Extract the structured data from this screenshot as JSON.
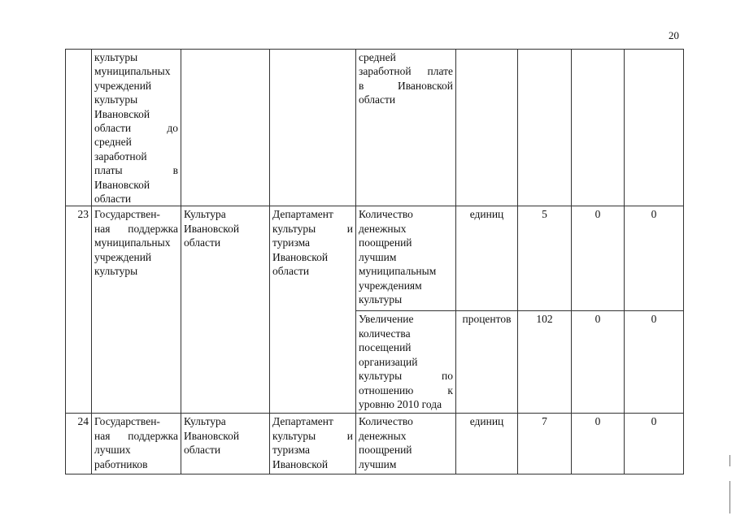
{
  "page_number": "20",
  "rows": [
    {
      "num": "",
      "event": [
        "культуры",
        "муниципальных",
        "учреждений",
        "культуры",
        "Ивановской",
        "области до",
        "средней",
        "заработной",
        "платы в",
        "Ивановской",
        "области"
      ],
      "program": [],
      "executor": [],
      "indicators": [
        {
          "name": [
            "средней",
            "заработной плате",
            "в Ивановской",
            "области"
          ],
          "unit": "",
          "v1": "",
          "v2": "",
          "v3": ""
        }
      ]
    },
    {
      "num": "23",
      "event": [
        "Государствен-",
        "ная поддержка",
        "муниципальных",
        "учреждений",
        "культуры"
      ],
      "program": [
        "Культура",
        "Ивановской",
        "области"
      ],
      "executor": [
        "Департамент",
        "культуры и",
        "туризма",
        "Ивановской",
        "области"
      ],
      "indicators": [
        {
          "name": [
            "Количество",
            "денежных",
            "поощрений",
            "лучшим",
            "муниципальным",
            "учреждениям",
            "культуры"
          ],
          "unit": "единиц",
          "v1": "5",
          "v2": "0",
          "v3": "0"
        },
        {
          "name": [
            "Увеличение",
            "количества",
            "посещений",
            "организаций",
            "культуры по",
            "отношению к",
            "уровню 2010 года"
          ],
          "unit": "процентов",
          "v1": "102",
          "v2": "0",
          "v3": "0"
        }
      ]
    },
    {
      "num": "24",
      "event": [
        "Государствен-",
        "ная поддержка",
        "лучших",
        "работников"
      ],
      "program": [
        "Культура",
        "Ивановской",
        "области"
      ],
      "executor": [
        "Департамент",
        "культуры и",
        "туризма",
        "Ивановской"
      ],
      "indicators": [
        {
          "name": [
            "Количество",
            "денежных",
            "поощрений",
            "лучшим"
          ],
          "unit": "единиц",
          "v1": "7",
          "v2": "0",
          "v3": "0"
        }
      ]
    }
  ]
}
